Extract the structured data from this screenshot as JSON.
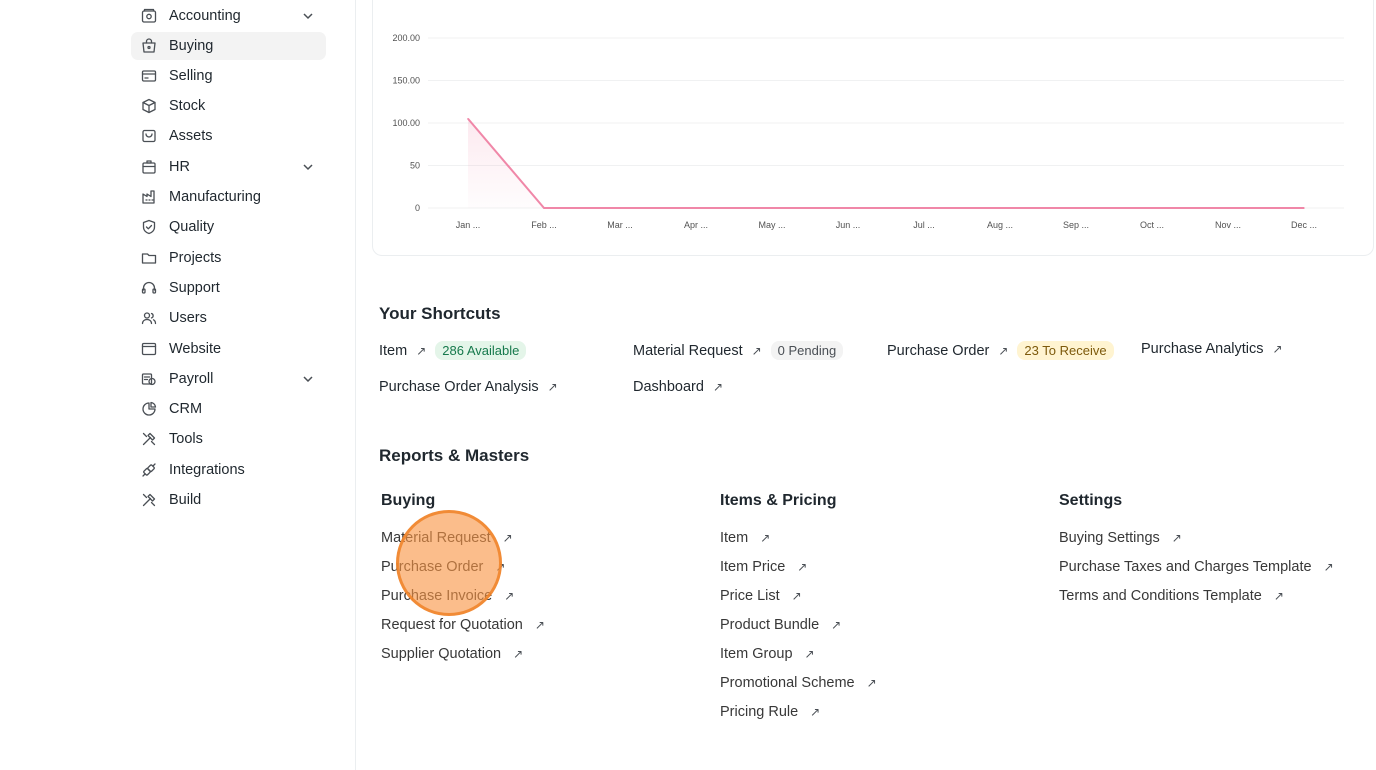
{
  "sidebar": {
    "items": [
      {
        "label": "Accounting",
        "icon": "accounting-icon",
        "expandable": true
      },
      {
        "label": "Buying",
        "icon": "buying-icon",
        "expandable": false,
        "active": true
      },
      {
        "label": "Selling",
        "icon": "selling-icon",
        "expandable": false
      },
      {
        "label": "Stock",
        "icon": "stock-icon",
        "expandable": false
      },
      {
        "label": "Assets",
        "icon": "assets-icon",
        "expandable": false
      },
      {
        "label": "HR",
        "icon": "hr-icon",
        "expandable": true
      },
      {
        "label": "Manufacturing",
        "icon": "manufacturing-icon",
        "expandable": false
      },
      {
        "label": "Quality",
        "icon": "quality-icon",
        "expandable": false
      },
      {
        "label": "Projects",
        "icon": "projects-icon",
        "expandable": false
      },
      {
        "label": "Support",
        "icon": "support-icon",
        "expandable": false
      },
      {
        "label": "Users",
        "icon": "users-icon",
        "expandable": false
      },
      {
        "label": "Website",
        "icon": "website-icon",
        "expandable": false
      },
      {
        "label": "Payroll",
        "icon": "payroll-icon",
        "expandable": true
      },
      {
        "label": "CRM",
        "icon": "crm-icon",
        "expandable": false
      },
      {
        "label": "Tools",
        "icon": "tools-icon",
        "expandable": false
      },
      {
        "label": "Integrations",
        "icon": "integrations-icon",
        "expandable": false
      },
      {
        "label": "Build",
        "icon": "build-icon",
        "expandable": false
      }
    ]
  },
  "chart_data": {
    "type": "line",
    "categories": [
      "Jan ...",
      "Feb ...",
      "Mar ...",
      "Apr ...",
      "May ...",
      "Jun ...",
      "Jul ...",
      "Aug ...",
      "Sep ...",
      "Oct ...",
      "Nov ...",
      "Dec ..."
    ],
    "series": [
      {
        "values": [
          105,
          0,
          0,
          0,
          0,
          0,
          0,
          0,
          0,
          0,
          0,
          0
        ]
      }
    ],
    "y_ticks": [
      "0",
      "50",
      "100.00",
      "150.00",
      "200.00"
    ],
    "ylim": [
      0,
      200
    ],
    "line_color": "#f087a8",
    "grid": true
  },
  "shortcuts": {
    "title": "Your Shortcuts",
    "items": [
      {
        "label": "Item",
        "badge": "286 Available",
        "badge_color": "green"
      },
      {
        "label": "Material Request",
        "badge": "0 Pending",
        "badge_color": "gray"
      },
      {
        "label": "Purchase Order",
        "badge": "23 To Receive",
        "badge_color": "yellow"
      },
      {
        "label": "Purchase Analytics",
        "badge": null
      },
      {
        "label": "Purchase Order Analysis",
        "badge": null
      },
      {
        "label": "Dashboard",
        "badge": null
      }
    ]
  },
  "reports": {
    "title": "Reports & Masters",
    "columns": [
      {
        "title": "Buying",
        "links": [
          "Material Request",
          "Purchase Order",
          "Purchase Invoice",
          "Request for Quotation",
          "Supplier Quotation"
        ]
      },
      {
        "title": "Items & Pricing",
        "links": [
          "Item",
          "Item Price",
          "Price List",
          "Product Bundle",
          "Item Group",
          "Promotional Scheme",
          "Pricing Rule"
        ]
      },
      {
        "title": "Settings",
        "links": [
          "Buying Settings",
          "Purchase Taxes and Charges Template",
          "Terms and Conditions Template"
        ]
      }
    ]
  },
  "arrow_glyph": "↗",
  "colors": {
    "accent_line": "#f087a8",
    "badge_green": "#e4f5e9",
    "badge_yellow": "#fff4d1",
    "click_marker": "#f89544"
  }
}
